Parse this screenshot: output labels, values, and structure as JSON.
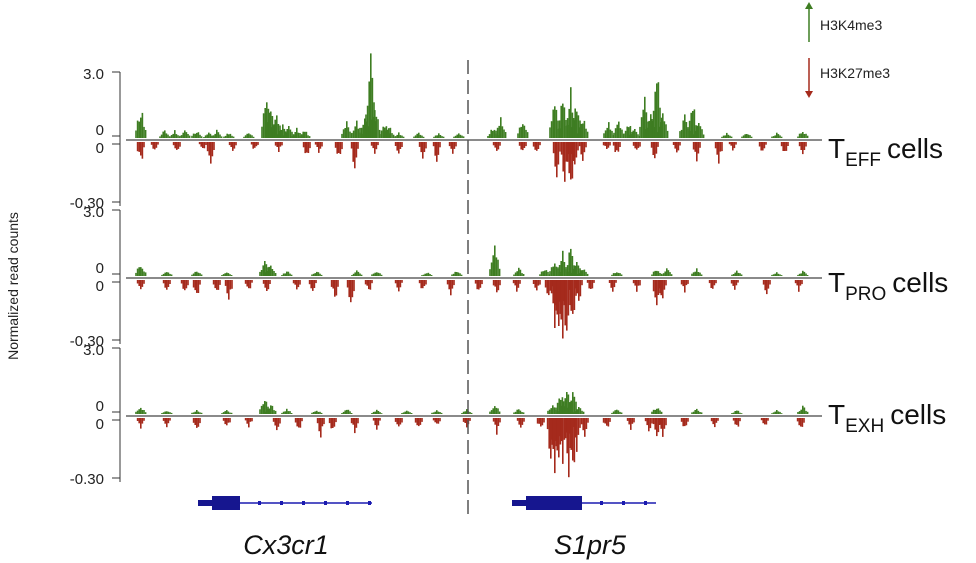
{
  "chart_data": {
    "type": "area",
    "ylabel": "Normalized read counts",
    "legend": [
      {
        "name": "H3K4me3",
        "direction": "up",
        "color": "#3e7d22"
      },
      {
        "name": "H3K27me3",
        "direction": "down",
        "color": "#a52a1c"
      }
    ],
    "panels": [
      {
        "cell_prefix": "T",
        "cell_sub": "EFF",
        "cell_suffix": "cells",
        "ylim_up": [
          0,
          3.0
        ],
        "ylim_down": [
          -0.3,
          0
        ],
        "tick_labels": [
          "3.0",
          "0",
          "0",
          "-0.30"
        ],
        "peaks_up": [
          [
            4,
            1.2
          ],
          [
            28,
            0.3
          ],
          [
            38,
            0.3
          ],
          [
            48,
            0.3
          ],
          [
            60,
            0.3
          ],
          [
            72,
            0.2
          ],
          [
            80,
            0.3
          ],
          [
            92,
            0.2
          ],
          [
            112,
            0.2
          ],
          [
            130,
            1.8
          ],
          [
            134,
            1.2
          ],
          [
            140,
            0.9
          ],
          [
            146,
            0.5
          ],
          [
            152,
            0.5
          ],
          [
            160,
            0.4
          ],
          [
            168,
            0.3
          ],
          [
            210,
            0.6
          ],
          [
            220,
            0.7
          ],
          [
            228,
            0.8
          ],
          [
            234,
            3.0
          ],
          [
            238,
            1.6
          ],
          [
            248,
            0.6
          ],
          [
            252,
            0.5
          ],
          [
            262,
            0.2
          ],
          [
            282,
            0.2
          ],
          [
            302,
            0.2
          ],
          [
            322,
            0.2
          ],
          [
            356,
            0.4
          ],
          [
            364,
            0.9
          ],
          [
            386,
            0.8
          ],
          [
            418,
            1.4
          ],
          [
            426,
            1.7
          ],
          [
            434,
            1.8
          ],
          [
            440,
            1.5
          ],
          [
            446,
            0.8
          ],
          [
            472,
            0.6
          ],
          [
            482,
            0.7
          ],
          [
            492,
            0.6
          ],
          [
            498,
            0.4
          ],
          [
            508,
            1.8
          ],
          [
            514,
            1.1
          ],
          [
            520,
            2.6
          ],
          [
            526,
            1.0
          ],
          [
            548,
            0.9
          ],
          [
            556,
            1.4
          ],
          [
            562,
            0.6
          ],
          [
            590,
            0.2
          ],
          [
            610,
            0.2
          ],
          [
            640,
            0.2
          ],
          [
            666,
            0.3
          ]
        ],
        "peaks_down": [
          [
            4,
            0.1
          ],
          [
            18,
            0.04
          ],
          [
            40,
            0.05
          ],
          [
            66,
            0.04
          ],
          [
            74,
            0.12
          ],
          [
            96,
            0.05
          ],
          [
            118,
            0.04
          ],
          [
            142,
            0.04
          ],
          [
            170,
            0.07
          ],
          [
            182,
            0.05
          ],
          [
            202,
            0.08
          ],
          [
            218,
            0.12
          ],
          [
            238,
            0.05
          ],
          [
            262,
            0.06
          ],
          [
            286,
            0.08
          ],
          [
            300,
            0.08
          ],
          [
            316,
            0.06
          ],
          [
            360,
            0.05
          ],
          [
            386,
            0.05
          ],
          [
            400,
            0.05
          ],
          [
            420,
            0.15
          ],
          [
            428,
            0.18
          ],
          [
            434,
            0.22
          ],
          [
            438,
            0.14
          ],
          [
            446,
            0.08
          ],
          [
            470,
            0.04
          ],
          [
            480,
            0.06
          ],
          [
            500,
            0.05
          ],
          [
            518,
            0.08
          ],
          [
            540,
            0.05
          ],
          [
            560,
            0.08
          ],
          [
            582,
            0.1
          ],
          [
            596,
            0.04
          ],
          [
            626,
            0.05
          ],
          [
            648,
            0.06
          ],
          [
            666,
            0.05
          ]
        ]
      },
      {
        "cell_prefix": "T",
        "cell_sub": "PRO",
        "cell_suffix": "cells",
        "ylim_up": [
          0,
          3.0
        ],
        "ylim_down": [
          -0.3,
          0
        ],
        "tick_labels": [
          "3.0",
          "0",
          "0",
          "-0.30"
        ],
        "peaks_up": [
          [
            4,
            0.5
          ],
          [
            30,
            0.2
          ],
          [
            60,
            0.2
          ],
          [
            90,
            0.15
          ],
          [
            128,
            0.6
          ],
          [
            134,
            0.5
          ],
          [
            150,
            0.2
          ],
          [
            180,
            0.2
          ],
          [
            220,
            0.2
          ],
          [
            240,
            0.2
          ],
          [
            290,
            0.15
          ],
          [
            320,
            0.2
          ],
          [
            358,
            1.1
          ],
          [
            382,
            0.3
          ],
          [
            408,
            0.3
          ],
          [
            418,
            0.6
          ],
          [
            426,
            0.9
          ],
          [
            434,
            1.1
          ],
          [
            440,
            0.6
          ],
          [
            446,
            0.3
          ],
          [
            480,
            0.2
          ],
          [
            520,
            0.3
          ],
          [
            530,
            0.3
          ],
          [
            560,
            0.3
          ],
          [
            600,
            0.2
          ],
          [
            640,
            0.15
          ],
          [
            666,
            0.2
          ]
        ],
        "peaks_down": [
          [
            4,
            0.04
          ],
          [
            30,
            0.05
          ],
          [
            48,
            0.06
          ],
          [
            60,
            0.08
          ],
          [
            80,
            0.06
          ],
          [
            92,
            0.1
          ],
          [
            112,
            0.05
          ],
          [
            130,
            0.06
          ],
          [
            160,
            0.05
          ],
          [
            176,
            0.06
          ],
          [
            198,
            0.09
          ],
          [
            214,
            0.12
          ],
          [
            232,
            0.06
          ],
          [
            262,
            0.05
          ],
          [
            286,
            0.06
          ],
          [
            314,
            0.08
          ],
          [
            342,
            0.06
          ],
          [
            360,
            0.06
          ],
          [
            380,
            0.05
          ],
          [
            400,
            0.05
          ],
          [
            412,
            0.1
          ],
          [
            418,
            0.22
          ],
          [
            422,
            0.3
          ],
          [
            426,
            0.26
          ],
          [
            430,
            0.28
          ],
          [
            436,
            0.18
          ],
          [
            442,
            0.1
          ],
          [
            454,
            0.05
          ],
          [
            476,
            0.05
          ],
          [
            500,
            0.06
          ],
          [
            520,
            0.14
          ],
          [
            526,
            0.1
          ],
          [
            548,
            0.05
          ],
          [
            576,
            0.05
          ],
          [
            598,
            0.05
          ],
          [
            630,
            0.06
          ],
          [
            662,
            0.05
          ]
        ]
      },
      {
        "cell_prefix": "T",
        "cell_sub": "EXH",
        "cell_suffix": "cells",
        "ylim_up": [
          0,
          3.0
        ],
        "ylim_down": [
          -0.3,
          0
        ],
        "tick_labels": [
          "3.0",
          "0",
          "0",
          "-0.30"
        ],
        "peaks_up": [
          [
            4,
            0.3
          ],
          [
            30,
            0.15
          ],
          [
            60,
            0.15
          ],
          [
            90,
            0.15
          ],
          [
            128,
            0.7
          ],
          [
            134,
            0.4
          ],
          [
            150,
            0.2
          ],
          [
            180,
            0.15
          ],
          [
            210,
            0.2
          ],
          [
            240,
            0.15
          ],
          [
            270,
            0.15
          ],
          [
            300,
            0.15
          ],
          [
            330,
            0.2
          ],
          [
            358,
            0.4
          ],
          [
            382,
            0.2
          ],
          [
            416,
            0.4
          ],
          [
            424,
            0.8
          ],
          [
            430,
            1.2
          ],
          [
            436,
            0.9
          ],
          [
            442,
            0.3
          ],
          [
            480,
            0.2
          ],
          [
            520,
            0.3
          ],
          [
            560,
            0.2
          ],
          [
            600,
            0.15
          ],
          [
            640,
            0.15
          ],
          [
            666,
            0.3
          ]
        ],
        "peaks_down": [
          [
            4,
            0.05
          ],
          [
            30,
            0.04
          ],
          [
            60,
            0.06
          ],
          [
            90,
            0.05
          ],
          [
            112,
            0.04
          ],
          [
            140,
            0.06
          ],
          [
            162,
            0.06
          ],
          [
            184,
            0.08
          ],
          [
            196,
            0.06
          ],
          [
            218,
            0.06
          ],
          [
            240,
            0.05
          ],
          [
            262,
            0.05
          ],
          [
            282,
            0.05
          ],
          [
            300,
            0.04
          ],
          [
            330,
            0.05
          ],
          [
            360,
            0.07
          ],
          [
            384,
            0.05
          ],
          [
            404,
            0.06
          ],
          [
            414,
            0.18
          ],
          [
            418,
            0.24
          ],
          [
            422,
            0.26
          ],
          [
            426,
            0.2
          ],
          [
            432,
            0.28
          ],
          [
            436,
            0.3
          ],
          [
            440,
            0.14
          ],
          [
            448,
            0.08
          ],
          [
            470,
            0.05
          ],
          [
            494,
            0.05
          ],
          [
            512,
            0.06
          ],
          [
            520,
            0.1
          ],
          [
            526,
            0.08
          ],
          [
            548,
            0.05
          ],
          [
            578,
            0.05
          ],
          [
            600,
            0.05
          ],
          [
            628,
            0.04
          ],
          [
            664,
            0.06
          ]
        ]
      }
    ],
    "genes": [
      {
        "name": "Cx3cr1",
        "start": 76,
        "end": 236,
        "thick_start": 76,
        "thick_end": 104
      },
      {
        "name": "S1pr5",
        "start": 390,
        "end": 520,
        "thick_start": 390,
        "thick_end": 446
      }
    ]
  }
}
